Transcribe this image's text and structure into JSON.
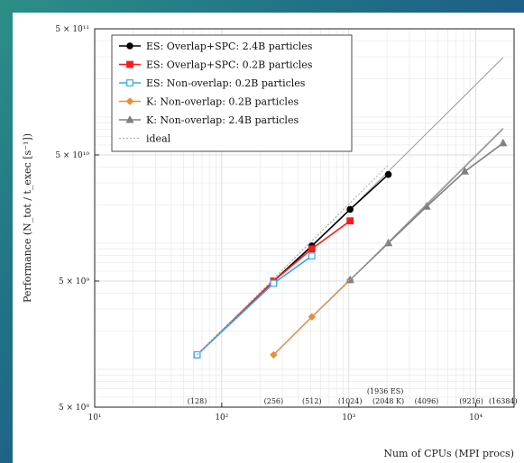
{
  "chart_data": {
    "type": "line",
    "xscale": "log",
    "yscale": "log",
    "xlim": [
      10,
      20000
    ],
    "ylim": [
      500000000,
      500000000000
    ],
    "grid": true,
    "legend_position": "top-left",
    "xlabel": "Num of CPUs (MPI procs)",
    "ylabel": "Performance (N_tot / t_exec [s⁻¹])",
    "xticks": [
      {
        "value": 10,
        "label": "10¹"
      },
      {
        "value": 100,
        "label": "10²"
      },
      {
        "value": 1000,
        "label": "10³"
      },
      {
        "value": 10000,
        "label": "10⁴"
      }
    ],
    "yticks": [
      {
        "value": 500000000,
        "label": "5 × 10⁸"
      },
      {
        "value": 5000000000,
        "label": "5 × 10⁹"
      },
      {
        "value": 50000000000,
        "label": "5 × 10¹⁰"
      },
      {
        "value": 500000000000,
        "label": "5 × 10¹¹"
      }
    ],
    "annotations": [
      {
        "x": 64,
        "row": 0,
        "text": "(128)"
      },
      {
        "x": 256,
        "row": 0,
        "text": "(256)"
      },
      {
        "x": 512,
        "row": 0,
        "text": "(512)"
      },
      {
        "x": 1024,
        "row": 0,
        "text": "(1024)"
      },
      {
        "x": 2048,
        "row": 0,
        "text": "(2048 K)"
      },
      {
        "x": 1936,
        "row": 1,
        "text": "(1936 ES)"
      },
      {
        "x": 4096,
        "row": 0,
        "text": "(4096)"
      },
      {
        "x": 9216,
        "row": 0,
        "text": "(9216)"
      },
      {
        "x": 16384,
        "row": 0,
        "text": "(16384)"
      }
    ],
    "series": [
      {
        "name": "ES: Overlap+SPC: 2.4B particles",
        "color": "#000000",
        "marker": "circle",
        "fill": "filled",
        "x": [
          64,
          256,
          512,
          1024,
          2048
        ],
        "y": [
          1300000000,
          5000000000,
          9500000000,
          18500000000,
          35000000000
        ]
      },
      {
        "name": "ES: Overlap+SPC: 0.2B particles",
        "color": "#ff1a1a",
        "marker": "square",
        "fill": "filled",
        "x": [
          64,
          256,
          512,
          1024
        ],
        "y": [
          1300000000,
          5000000000,
          9000000000,
          15000000000
        ]
      },
      {
        "name": "ES: Non-overlap: 0.2B particles",
        "color": "#33aaee",
        "marker": "square",
        "fill": "open",
        "x": [
          64,
          256,
          512
        ],
        "y": [
          1300000000,
          4800000000,
          7900000000
        ]
      },
      {
        "name": "K: Non-overlap: 0.2B particles",
        "color": "#f08a30",
        "marker": "diamond",
        "fill": "filled",
        "x": [
          256,
          512,
          1024
        ],
        "y": [
          1300000000,
          2600000000,
          5100000000
        ]
      },
      {
        "name": "K: Non-overlap: 2.4B particles",
        "color": "#808080",
        "marker": "triangle",
        "fill": "filled",
        "x": [
          1024,
          2048,
          4096,
          8192,
          16384
        ],
        "y": [
          5100000000,
          10000000000,
          19500000000,
          37000000000,
          62000000000
        ]
      },
      {
        "name": "ideal",
        "color": "#aaaaaa",
        "marker": "none",
        "fill": "none",
        "dash": "2,2",
        "lines": [
          {
            "x": [
              64,
              2048
            ],
            "y": [
              1300000000,
              41600000000
            ]
          },
          {
            "x": [
              64,
              1024
            ],
            "y": [
              1300000000,
              20800000000
            ]
          },
          {
            "x": [
              64,
              512
            ],
            "y": [
              1300000000,
              10400000000
            ]
          },
          {
            "x": [
              256,
              1024
            ],
            "y": [
              1300000000,
              5200000000
            ]
          },
          {
            "x": [
              1024,
              16384
            ],
            "y": [
              5100000000,
              81600000000
            ]
          }
        ]
      }
    ],
    "ideal_solid": [
      {
        "x": [
          1024,
          16384
        ],
        "y": [
          18500000000,
          296000000000
        ],
        "color": "#999999"
      },
      {
        "x": [
          1024,
          16384
        ],
        "y": [
          5100000000,
          81600000000
        ],
        "color": "#999999"
      },
      {
        "x": [
          2048,
          16384
        ],
        "y": [
          10000000000,
          80000000000
        ],
        "color": "#999999"
      }
    ]
  }
}
